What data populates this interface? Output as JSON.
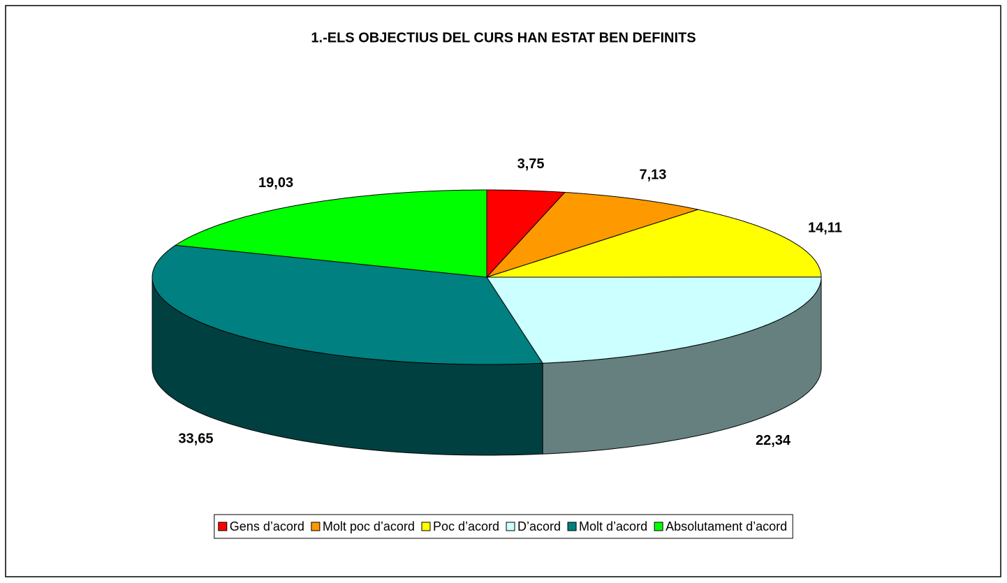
{
  "chart_data": {
    "type": "pie3d",
    "title": "1.-ELS OBJECTIUS DEL CURS HAN ESTAT BEN DEFINITS",
    "categories": [
      "Gens d’acord",
      "Molt poc d’acord",
      "Poc d’acord",
      "D’acord",
      "Molt d’acord",
      "Absolutament d’acord"
    ],
    "values": [
      3.75,
      7.13,
      14.11,
      22.34,
      33.65,
      19.03
    ],
    "value_labels": [
      "3,75",
      "7,13",
      "14,11",
      "22,34",
      "33,65",
      "19,03"
    ],
    "colors": [
      "#ff0000",
      "#ff9900",
      "#ffff00",
      "#ccffff",
      "#008080",
      "#00ff00"
    ],
    "legend": "bottom"
  }
}
